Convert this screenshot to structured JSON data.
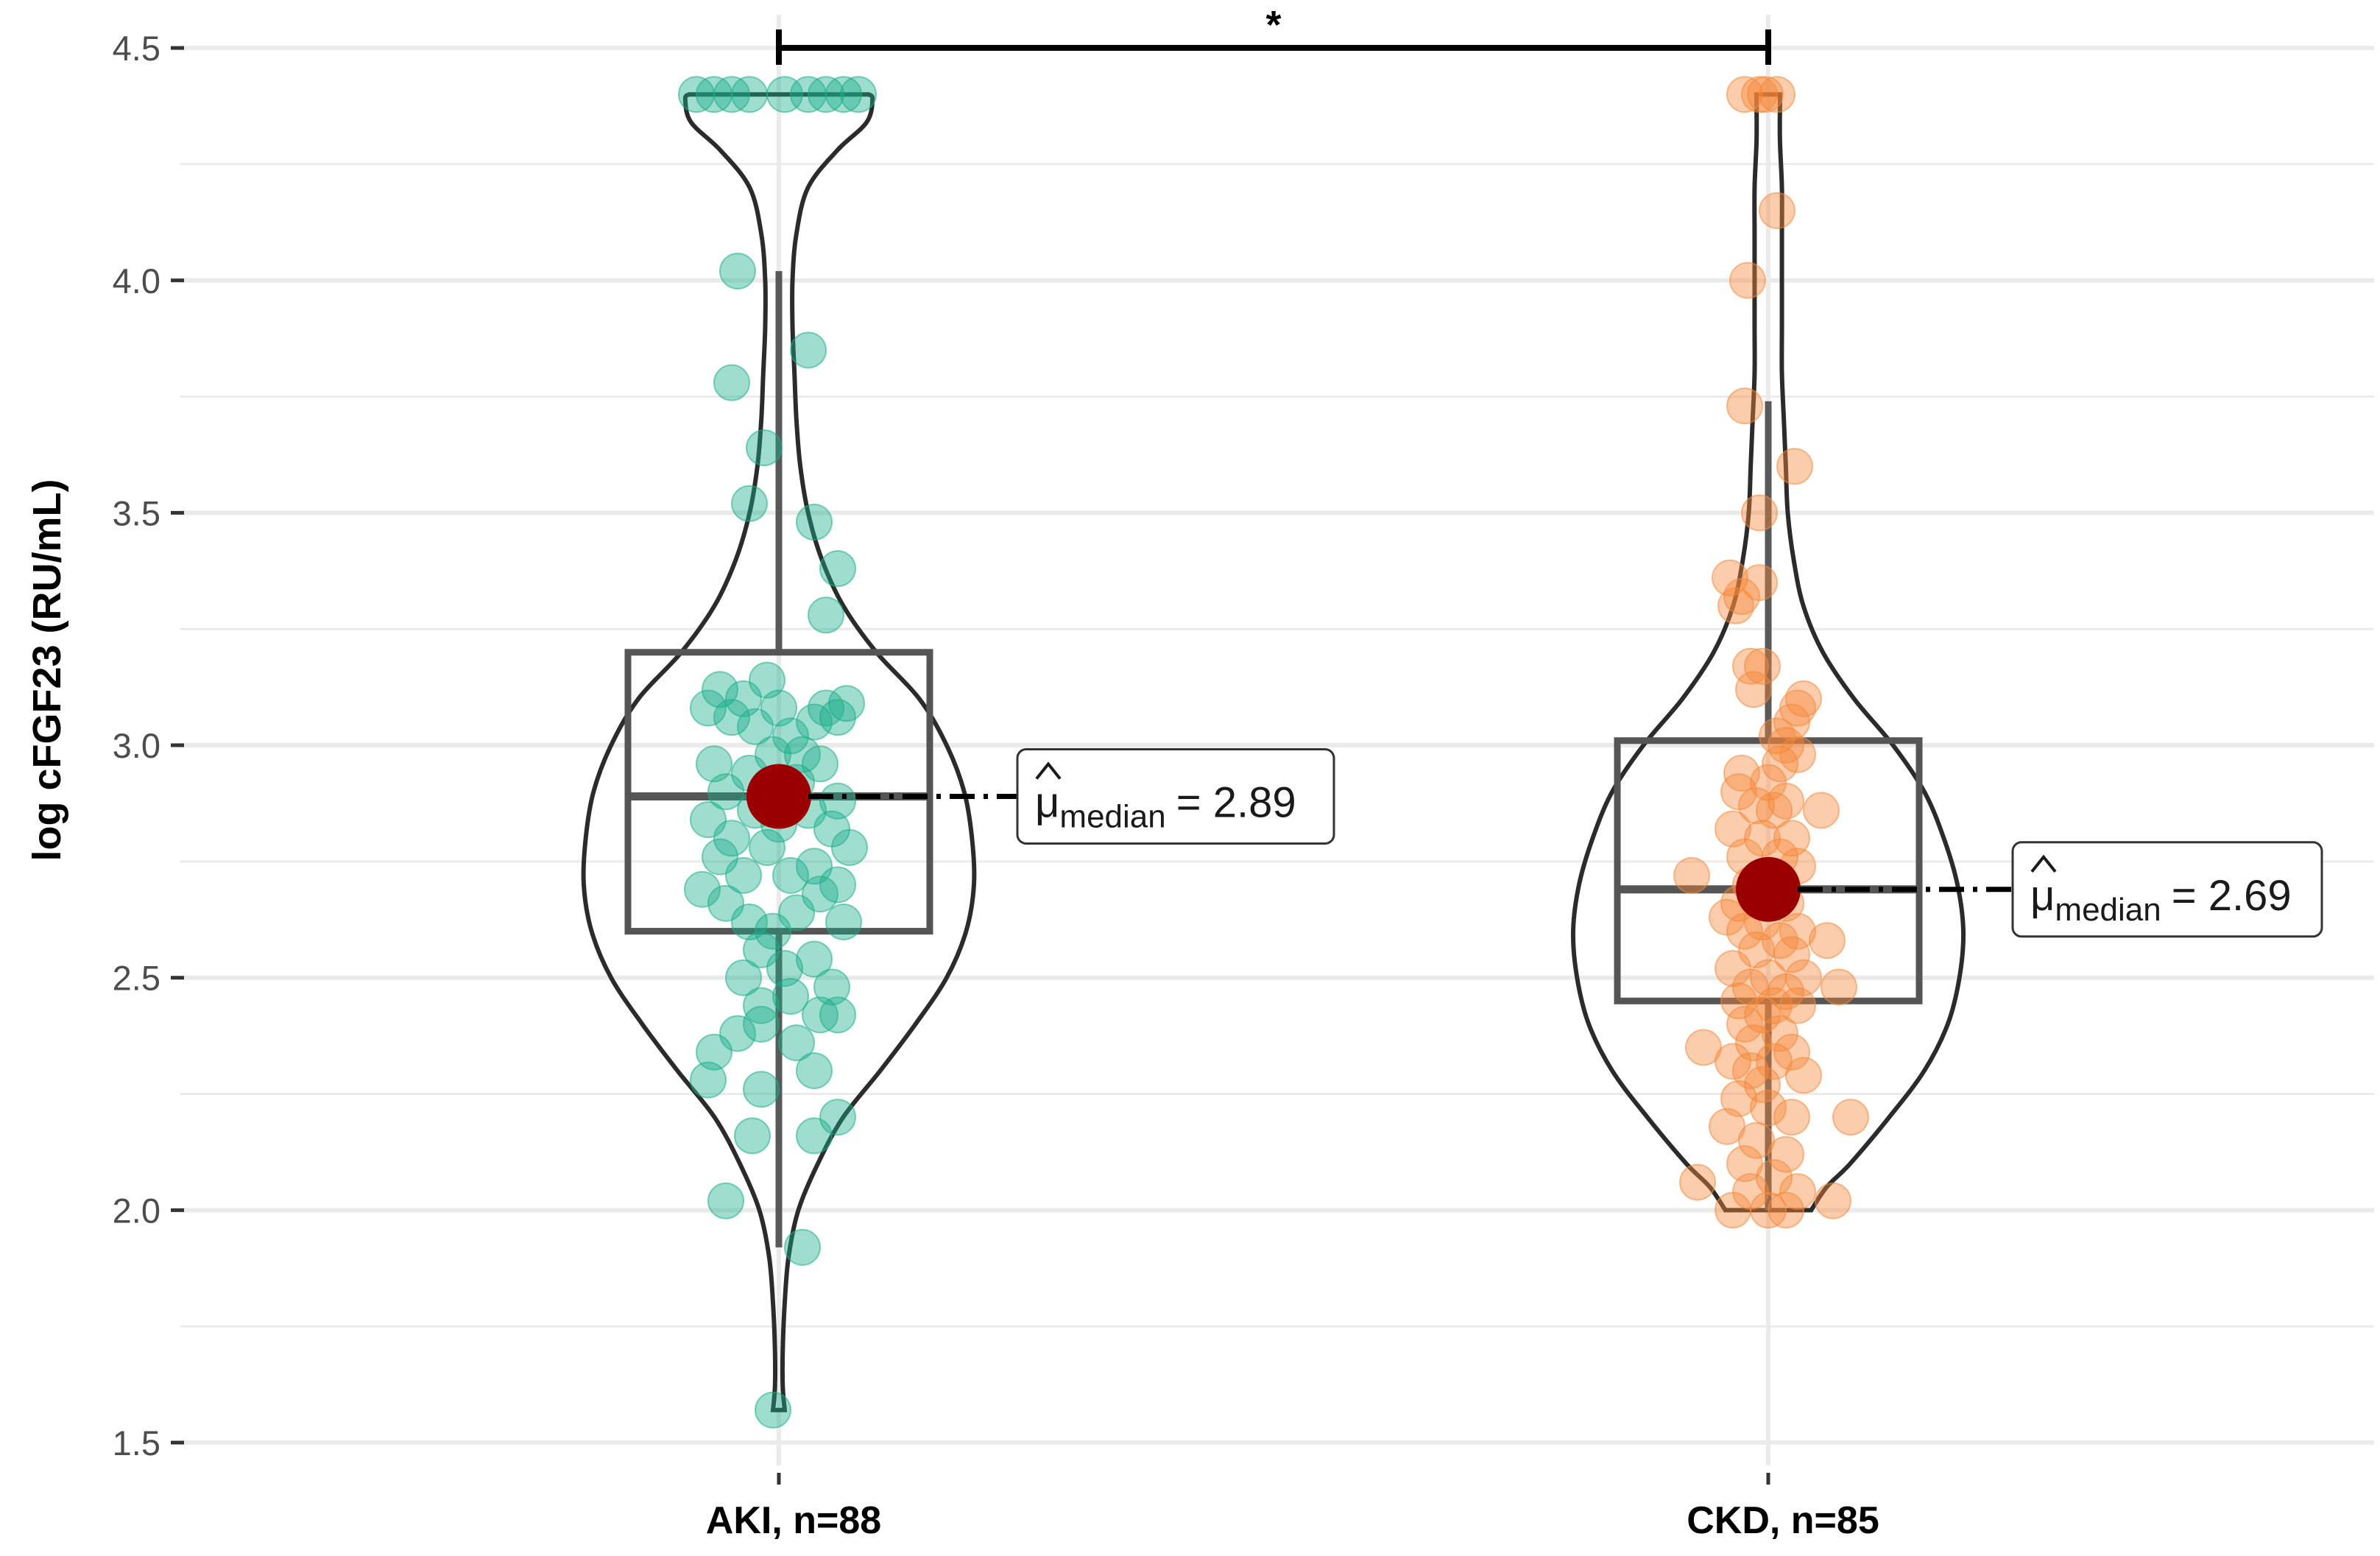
{
  "chart_data": {
    "type": "violin",
    "ylabel": "log cFGF23 (RU/mL)",
    "xlabel": "",
    "ylim": [
      1.5,
      4.5
    ],
    "yticks": [
      1.5,
      2.0,
      2.5,
      3.0,
      3.5,
      4.0,
      4.5
    ],
    "ytick_labels": [
      "1.5",
      "2.0",
      "2.5",
      "3.0",
      "3.5",
      "4.0",
      "4.5"
    ],
    "grid": true,
    "significance": {
      "between": [
        "AKI, n=88",
        "CKD, n=85"
      ],
      "label": "*"
    },
    "groups": [
      {
        "label": "AKI, n=88",
        "color": "#1AAF8B",
        "box": {
          "q1": 2.6,
          "median": 2.89,
          "q3": 3.2,
          "whisker_low": 1.92,
          "whisker_high": 4.02
        },
        "violin_range": [
          1.57,
          4.4
        ],
        "violin_profile": [
          [
            1.57,
            0.03
          ],
          [
            1.62,
            0.02
          ],
          [
            1.7,
            0.02
          ],
          [
            1.8,
            0.03
          ],
          [
            1.9,
            0.05
          ],
          [
            2.0,
            0.1
          ],
          [
            2.1,
            0.2
          ],
          [
            2.2,
            0.33
          ],
          [
            2.3,
            0.52
          ],
          [
            2.4,
            0.7
          ],
          [
            2.5,
            0.86
          ],
          [
            2.6,
            0.96
          ],
          [
            2.7,
            1.0
          ],
          [
            2.8,
            0.99
          ],
          [
            2.9,
            0.95
          ],
          [
            3.0,
            0.86
          ],
          [
            3.1,
            0.72
          ],
          [
            3.2,
            0.5
          ],
          [
            3.3,
            0.33
          ],
          [
            3.4,
            0.22
          ],
          [
            3.5,
            0.15
          ],
          [
            3.6,
            0.11
          ],
          [
            3.7,
            0.09
          ],
          [
            3.8,
            0.08
          ],
          [
            3.9,
            0.07
          ],
          [
            4.0,
            0.07
          ],
          [
            4.1,
            0.09
          ],
          [
            4.2,
            0.15
          ],
          [
            4.28,
            0.3
          ],
          [
            4.34,
            0.45
          ],
          [
            4.39,
            0.48
          ],
          [
            4.4,
            0.46
          ]
        ],
        "median_label": {
          "stat": "μ",
          "subscript": "median",
          "text": "= 2.89"
        },
        "points": [
          [
            -0.28,
            4.4
          ],
          [
            -0.22,
            4.4
          ],
          [
            -0.16,
            4.4
          ],
          [
            -0.1,
            4.4
          ],
          [
            0.02,
            4.4
          ],
          [
            0.1,
            4.4
          ],
          [
            0.16,
            4.4
          ],
          [
            0.22,
            4.4
          ],
          [
            0.27,
            4.4
          ],
          [
            -0.14,
            4.02
          ],
          [
            0.1,
            3.85
          ],
          [
            -0.16,
            3.78
          ],
          [
            -0.05,
            3.64
          ],
          [
            -0.1,
            3.52
          ],
          [
            0.12,
            3.48
          ],
          [
            0.2,
            3.38
          ],
          [
            0.16,
            3.28
          ],
          [
            -0.24,
            3.08
          ],
          [
            -0.2,
            3.12
          ],
          [
            -0.16,
            3.06
          ],
          [
            -0.12,
            3.1
          ],
          [
            -0.08,
            3.04
          ],
          [
            -0.04,
            3.14
          ],
          [
            0.0,
            3.08
          ],
          [
            0.04,
            3.02
          ],
          [
            0.08,
            2.98
          ],
          [
            0.12,
            3.05
          ],
          [
            0.16,
            3.08
          ],
          [
            0.2,
            3.06
          ],
          [
            0.23,
            3.09
          ],
          [
            -0.22,
            2.96
          ],
          [
            -0.18,
            2.9
          ],
          [
            -0.1,
            2.94
          ],
          [
            -0.02,
            2.98
          ],
          [
            0.06,
            2.92
          ],
          [
            0.14,
            2.96
          ],
          [
            0.2,
            2.88
          ],
          [
            -0.24,
            2.84
          ],
          [
            -0.16,
            2.8
          ],
          [
            -0.08,
            2.86
          ],
          [
            0.0,
            2.83
          ],
          [
            0.1,
            2.86
          ],
          [
            0.18,
            2.82
          ],
          [
            0.24,
            2.78
          ],
          [
            -0.2,
            2.76
          ],
          [
            -0.12,
            2.72
          ],
          [
            -0.04,
            2.78
          ],
          [
            0.04,
            2.72
          ],
          [
            0.12,
            2.74
          ],
          [
            0.2,
            2.7
          ],
          [
            -0.26,
            2.69
          ],
          [
            -0.18,
            2.66
          ],
          [
            -0.1,
            2.62
          ],
          [
            -0.02,
            2.6
          ],
          [
            0.06,
            2.64
          ],
          [
            0.14,
            2.68
          ],
          [
            0.22,
            2.62
          ],
          [
            -0.06,
            2.56
          ],
          [
            0.02,
            2.52
          ],
          [
            0.12,
            2.54
          ],
          [
            -0.12,
            2.5
          ],
          [
            0.18,
            2.48
          ],
          [
            -0.06,
            2.44
          ],
          [
            0.04,
            2.46
          ],
          [
            0.14,
            2.42
          ],
          [
            0.2,
            2.42
          ],
          [
            -0.14,
            2.38
          ],
          [
            -0.06,
            2.4
          ],
          [
            0.06,
            2.36
          ],
          [
            -0.22,
            2.34
          ],
          [
            0.12,
            2.3
          ],
          [
            -0.24,
            2.28
          ],
          [
            -0.06,
            2.26
          ],
          [
            0.2,
            2.2
          ],
          [
            -0.09,
            2.16
          ],
          [
            0.12,
            2.16
          ],
          [
            -0.18,
            2.02
          ],
          [
            0.08,
            1.92
          ],
          [
            -0.02,
            1.57
          ]
        ]
      },
      {
        "label": "CKD, n=85",
        "color": "#F5883A",
        "box": {
          "q1": 2.45,
          "median": 2.69,
          "q3": 3.01,
          "whisker_low": 2.0,
          "whisker_high": 3.74
        },
        "violin_range": [
          2.0,
          4.4
        ],
        "violin_profile": [
          [
            2.0,
            0.22
          ],
          [
            2.05,
            0.3
          ],
          [
            2.1,
            0.42
          ],
          [
            2.2,
            0.62
          ],
          [
            2.3,
            0.8
          ],
          [
            2.4,
            0.92
          ],
          [
            2.5,
            0.98
          ],
          [
            2.6,
            1.0
          ],
          [
            2.7,
            0.97
          ],
          [
            2.8,
            0.9
          ],
          [
            2.9,
            0.8
          ],
          [
            3.0,
            0.64
          ],
          [
            3.1,
            0.44
          ],
          [
            3.2,
            0.28
          ],
          [
            3.3,
            0.18
          ],
          [
            3.4,
            0.13
          ],
          [
            3.5,
            0.1
          ],
          [
            3.6,
            0.09
          ],
          [
            3.7,
            0.08
          ],
          [
            3.8,
            0.07
          ],
          [
            3.9,
            0.07
          ],
          [
            4.0,
            0.07
          ],
          [
            4.1,
            0.07
          ],
          [
            4.2,
            0.07
          ],
          [
            4.3,
            0.06
          ],
          [
            4.38,
            0.06
          ],
          [
            4.4,
            0.06
          ]
        ],
        "median_label": {
          "stat": "μ",
          "subscript": "median",
          "text": "= 2.69"
        },
        "points": [
          [
            -0.08,
            4.4
          ],
          [
            -0.01,
            4.4
          ],
          [
            0.03,
            4.4
          ],
          [
            -0.03,
            4.4
          ],
          [
            0.03,
            4.15
          ],
          [
            -0.07,
            4.0
          ],
          [
            -0.08,
            3.73
          ],
          [
            0.09,
            3.6
          ],
          [
            -0.03,
            3.5
          ],
          [
            -0.13,
            3.36
          ],
          [
            -0.09,
            3.32
          ],
          [
            -0.03,
            3.35
          ],
          [
            -0.11,
            3.3
          ],
          [
            -0.06,
            3.17
          ],
          [
            -0.02,
            3.17
          ],
          [
            -0.05,
            3.12
          ],
          [
            0.03,
            3.02
          ],
          [
            0.08,
            3.05
          ],
          [
            0.1,
            3.08
          ],
          [
            0.12,
            3.1
          ],
          [
            0.06,
            3.0
          ],
          [
            0.1,
            2.98
          ],
          [
            -0.09,
            2.94
          ],
          [
            0.0,
            2.92
          ],
          [
            0.04,
            2.96
          ],
          [
            -0.1,
            2.9
          ],
          [
            0.06,
            2.88
          ],
          [
            -0.04,
            2.87
          ],
          [
            0.02,
            2.86
          ],
          [
            -0.12,
            2.82
          ],
          [
            -0.02,
            2.8
          ],
          [
            0.08,
            2.8
          ],
          [
            -0.08,
            2.76
          ],
          [
            0.04,
            2.76
          ],
          [
            0.1,
            2.74
          ],
          [
            -0.06,
            2.7
          ],
          [
            0.02,
            2.7
          ],
          [
            -0.1,
            2.66
          ],
          [
            0.06,
            2.66
          ],
          [
            -0.14,
            2.63
          ],
          [
            -0.02,
            2.62
          ],
          [
            0.1,
            2.6
          ],
          [
            -0.08,
            2.6
          ],
          [
            0.04,
            2.58
          ],
          [
            -0.04,
            2.56
          ],
          [
            0.08,
            2.55
          ],
          [
            -0.12,
            2.52
          ],
          [
            0.0,
            2.5
          ],
          [
            0.12,
            2.5
          ],
          [
            -0.06,
            2.48
          ],
          [
            0.06,
            2.47
          ],
          [
            -0.1,
            2.45
          ],
          [
            0.02,
            2.44
          ],
          [
            0.1,
            2.44
          ],
          [
            -0.02,
            2.42
          ],
          [
            -0.08,
            2.4
          ],
          [
            0.04,
            2.38
          ],
          [
            -0.05,
            2.36
          ],
          [
            0.08,
            2.34
          ],
          [
            -0.12,
            2.32
          ],
          [
            0.02,
            2.32
          ],
          [
            -0.06,
            2.3
          ],
          [
            0.12,
            2.29
          ],
          [
            -0.02,
            2.27
          ],
          [
            -0.1,
            2.24
          ],
          [
            0.0,
            2.22
          ],
          [
            0.08,
            2.2
          ],
          [
            -0.14,
            2.18
          ],
          [
            -0.04,
            2.15
          ],
          [
            0.06,
            2.12
          ],
          [
            -0.08,
            2.1
          ],
          [
            0.02,
            2.07
          ],
          [
            -0.06,
            2.04
          ],
          [
            0.1,
            2.04
          ],
          [
            -0.12,
            2.0
          ],
          [
            0.0,
            2.0
          ],
          [
            0.06,
            2.0
          ],
          [
            0.22,
            2.02
          ],
          [
            -0.24,
            2.06
          ],
          [
            0.28,
            2.2
          ],
          [
            -0.22,
            2.35
          ],
          [
            0.24,
            2.48
          ],
          [
            0.2,
            2.58
          ],
          [
            -0.26,
            2.72
          ],
          [
            0.18,
            2.86
          ]
        ]
      }
    ]
  }
}
